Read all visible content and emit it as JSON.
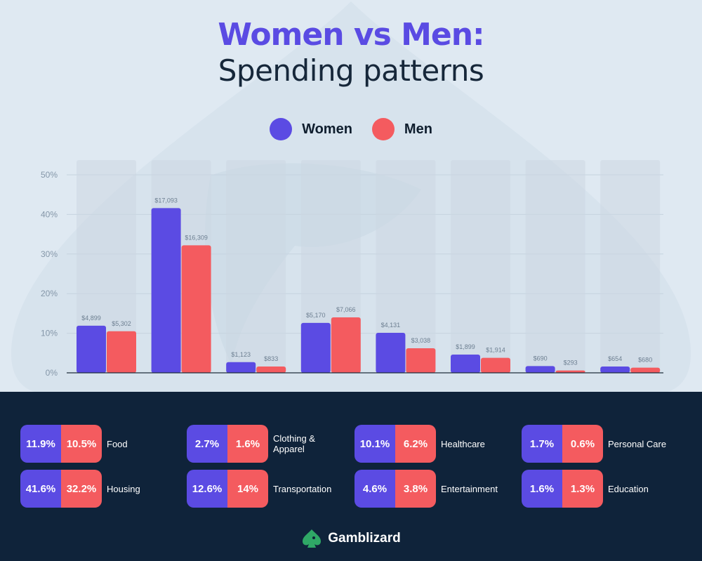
{
  "title": {
    "line1": "Women vs Men:",
    "line2": "Spending patterns"
  },
  "colors": {
    "women": "#5b4be3",
    "men": "#f45b5f",
    "background": "#dfe9f2",
    "footer_bg": "#0f233a",
    "brand_green": "#2fa866"
  },
  "legend": {
    "women": "Women",
    "men": "Men"
  },
  "chart_data": {
    "type": "bar",
    "categories": [
      "Food",
      "Housing",
      "Clothing & Apparel",
      "Transportation",
      "Healthcare",
      "Entertainment",
      "Personal Care",
      "Education"
    ],
    "series": [
      {
        "name": "Women",
        "values": [
          11.9,
          41.6,
          2.7,
          12.6,
          10.1,
          4.6,
          1.7,
          1.6
        ],
        "labels": [
          "$4,899",
          "$17,093",
          "$1,123",
          "$5,170",
          "$4,131",
          "$1,899",
          "$690",
          "$654"
        ]
      },
      {
        "name": "Men",
        "values": [
          10.5,
          32.2,
          1.6,
          14,
          6.2,
          3.8,
          0.6,
          1.3
        ],
        "labels": [
          "$5,302",
          "$16,309",
          "$833",
          "$7,066",
          "$3,038",
          "$1,914",
          "$293",
          "$680"
        ]
      }
    ],
    "ylim": [
      0,
      50
    ],
    "yticks": [
      "0%",
      "10%",
      "20%",
      "30%",
      "40%",
      "50%"
    ],
    "grid": true,
    "legend_position": "top-center",
    "xlabel": "",
    "ylabel": ""
  },
  "summary": [
    {
      "women": "11.9%",
      "men": "10.5%",
      "label": "Food"
    },
    {
      "women": "2.7%",
      "men": "1.6%",
      "label": "Clothing &\nApparel"
    },
    {
      "women": "10.1%",
      "men": "6.2%",
      "label": "Healthcare"
    },
    {
      "women": "1.7%",
      "men": "0.6%",
      "label": "Personal Care"
    },
    {
      "women": "41.6%",
      "men": "32.2%",
      "label": "Housing"
    },
    {
      "women": "12.6%",
      "men": "14%",
      "label": "Transportation"
    },
    {
      "women": "4.6%",
      "men": "3.8%",
      "label": "Entertainment"
    },
    {
      "women": "1.6%",
      "men": "1.3%",
      "label": "Education"
    }
  ],
  "brand": {
    "name": "Gamblizard",
    "icon": "spade-lizard-icon"
  }
}
